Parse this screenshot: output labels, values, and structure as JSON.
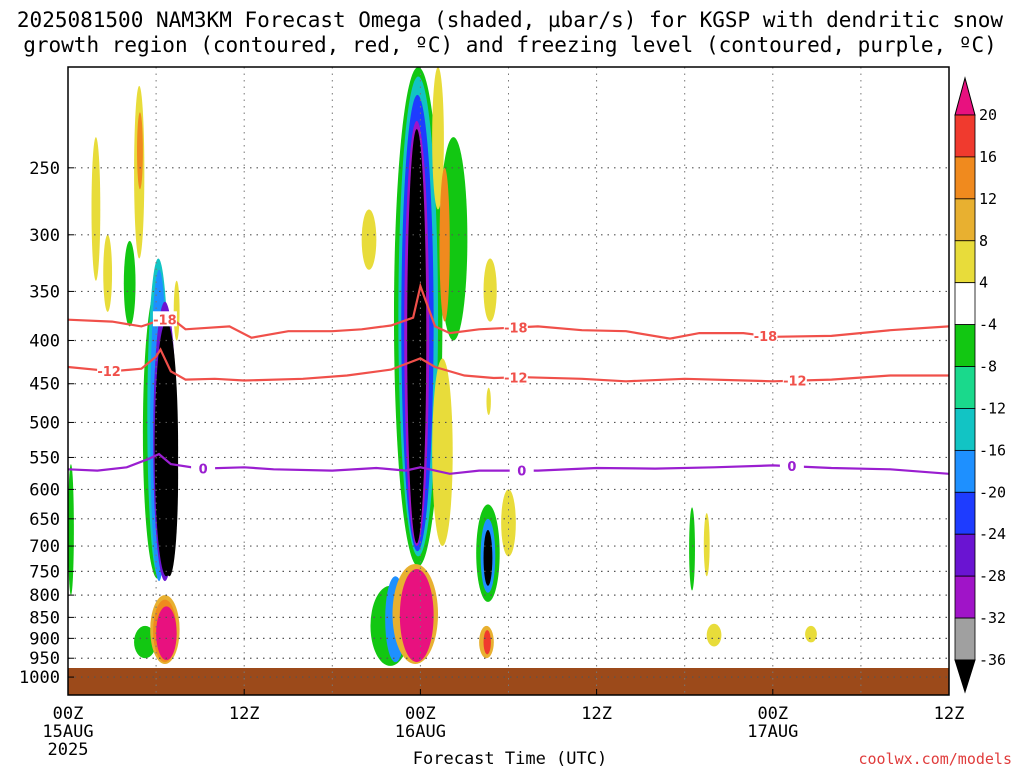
{
  "chart_data": {
    "type": "heatmap",
    "title": "2025081500 NAM3KM Forecast Omega (shaded, µbar/s) for KGSP with dendritic snow",
    "subtitle": "growth region (contoured, red, ºC) and freezing level (contoured, purple, ºC)",
    "xlabel": "Forecast Time (UTC)",
    "credit": "coolwx.com/models",
    "x_ticks": [
      {
        "hour": 0,
        "label": "00Z",
        "sub": "15AUG",
        "sub2": "2025"
      },
      {
        "hour": 12,
        "label": "12Z",
        "sub": "",
        "sub2": ""
      },
      {
        "hour": 24,
        "label": "00Z",
        "sub": "16AUG",
        "sub2": ""
      },
      {
        "hour": 36,
        "label": "12Z",
        "sub": "",
        "sub2": ""
      },
      {
        "hour": 48,
        "label": "00Z",
        "sub": "17AUG",
        "sub2": ""
      },
      {
        "hour": 60,
        "label": "12Z",
        "sub": "",
        "sub2": ""
      }
    ],
    "xlim": [
      0,
      60
    ],
    "y_axis": {
      "scale": "log-pressure",
      "ylim": [
        1050,
        190
      ],
      "tick_labels": [
        "250",
        "300",
        "350",
        "400",
        "450",
        "500",
        "550",
        "600",
        "650",
        "700",
        "750",
        "800",
        "850",
        "900",
        "950",
        "1000"
      ]
    },
    "colorbar": {
      "labels": [
        "20",
        "16",
        "12",
        "8",
        "4",
        "-4",
        "-8",
        "-12",
        "-16",
        "-20",
        "-24",
        "-28",
        "-32",
        "-36"
      ],
      "colors": [
        "#e8117f",
        "#f03a2e",
        "#f08a1e",
        "#e8b030",
        "#e8dc3a",
        "#ffffff",
        "#12c712",
        "#1ad98c",
        "#12c4c4",
        "#1e90ff",
        "#1e3cff",
        "#6a14d2",
        "#a014c8",
        "#a0a0a0",
        "#000000"
      ]
    },
    "contours": {
      "dgz_minus18": {
        "value": -18,
        "color": "#f0504a",
        "labels": [
          "-18",
          "-18",
          "-18"
        ],
        "points": [
          [
            0,
            378
          ],
          [
            3,
            380
          ],
          [
            5,
            385
          ],
          [
            6,
            380
          ],
          [
            7,
            376
          ],
          [
            8,
            388
          ],
          [
            11,
            385
          ],
          [
            12.5,
            397
          ],
          [
            15,
            390
          ],
          [
            18,
            390
          ],
          [
            20,
            388
          ],
          [
            22,
            384
          ],
          [
            23.5,
            376
          ],
          [
            24,
            345
          ],
          [
            25,
            385
          ],
          [
            26,
            392
          ],
          [
            28,
            388
          ],
          [
            32,
            385
          ],
          [
            35,
            389
          ],
          [
            38,
            390
          ],
          [
            41,
            398
          ],
          [
            43,
            392
          ],
          [
            46,
            392
          ],
          [
            48,
            396
          ],
          [
            52,
            395
          ],
          [
            56,
            389
          ],
          [
            60,
            385
          ]
        ]
      },
      "dgz_minus12": {
        "value": -12,
        "color": "#f0504a",
        "labels": [
          "-12",
          "-12",
          "-12"
        ],
        "points": [
          [
            0,
            430
          ],
          [
            3,
            435
          ],
          [
            5,
            432
          ],
          [
            6,
            418
          ],
          [
            6.3,
            410
          ],
          [
            7,
            435
          ],
          [
            8,
            445
          ],
          [
            10,
            444
          ],
          [
            12,
            446
          ],
          [
            16,
            444
          ],
          [
            19,
            440
          ],
          [
            22,
            433
          ],
          [
            24,
            420
          ],
          [
            25,
            430
          ],
          [
            27,
            440
          ],
          [
            29,
            443
          ],
          [
            31,
            442
          ],
          [
            35,
            444
          ],
          [
            38,
            447
          ],
          [
            42,
            444
          ],
          [
            48,
            447
          ],
          [
            52,
            445
          ],
          [
            56,
            440
          ],
          [
            60,
            440
          ]
        ]
      },
      "freezing_level": {
        "value": 0,
        "color": "#9a1ed0",
        "labels": [
          "0",
          "0",
          "0"
        ],
        "points": [
          [
            0,
            568
          ],
          [
            2,
            570
          ],
          [
            4,
            565
          ],
          [
            5.5,
            552
          ],
          [
            6.2,
            545
          ],
          [
            7,
            560
          ],
          [
            9,
            567
          ],
          [
            12,
            565
          ],
          [
            14,
            568
          ],
          [
            18,
            570
          ],
          [
            21,
            566
          ],
          [
            23,
            570
          ],
          [
            24,
            565
          ],
          [
            25,
            570
          ],
          [
            26,
            575
          ],
          [
            28,
            570
          ],
          [
            32,
            570
          ],
          [
            36,
            566
          ],
          [
            40,
            567
          ],
          [
            44,
            565
          ],
          [
            48,
            562
          ],
          [
            52,
            566
          ],
          [
            56,
            568
          ],
          [
            60,
            575
          ]
        ]
      }
    },
    "omega_features": [
      {
        "t": [
          5.1,
          7.1
        ],
        "p": [
          345,
          765
        ],
        "color": "#12c712"
      },
      {
        "t": [
          5.4,
          6.9
        ],
        "p": [
          320,
          760
        ],
        "color": "#12c4c4"
      },
      {
        "t": [
          5.6,
          6.8
        ],
        "p": [
          330,
          770
        ],
        "color": "#1e90ff"
      },
      {
        "t": [
          5.8,
          7.4
        ],
        "p": [
          360,
          770
        ],
        "color": "#6a14d2"
      },
      {
        "t": [
          5.9,
          7.5
        ],
        "p": [
          380,
          760
        ],
        "color": "#000000"
      },
      {
        "t": [
          6.3,
          7.5
        ],
        "p": [
          440,
          760
        ],
        "color": "#000000"
      },
      {
        "t": [
          4.5,
          6.0
        ],
        "p": [
          870,
          950
        ],
        "color": "#12c712"
      },
      {
        "t": [
          5.6,
          7.6
        ],
        "p": [
          800,
          965
        ],
        "color": "#e8b030"
      },
      {
        "t": [
          5.8,
          7.4
        ],
        "p": [
          810,
          960
        ],
        "color": "#f08a1e"
      },
      {
        "t": [
          6.0,
          7.4
        ],
        "p": [
          825,
          955
        ],
        "color": "#e8117f"
      },
      {
        "t": [
          4.5,
          5.2
        ],
        "p": [
          200,
          320
        ],
        "color": "#e8dc3a"
      },
      {
        "t": [
          4.7,
          5.1
        ],
        "p": [
          215,
          265
        ],
        "color": "#f08a1e"
      },
      {
        "t": [
          1.6,
          2.2
        ],
        "p": [
          230,
          340
        ],
        "color": "#e8dc3a"
      },
      {
        "t": [
          2.4,
          3.0
        ],
        "p": [
          300,
          370
        ],
        "color": "#e8dc3a"
      },
      {
        "t": [
          3.8,
          4.6
        ],
        "p": [
          305,
          385
        ],
        "color": "#12c712"
      },
      {
        "t": [
          0.0,
          0.4
        ],
        "p": [
          560,
          800
        ],
        "color": "#12c712"
      },
      {
        "t": [
          7.2,
          7.6
        ],
        "p": [
          340,
          400
        ],
        "color": "#e8dc3a"
      },
      {
        "t": [
          22.2,
          25.5
        ],
        "p": [
          190,
          740
        ],
        "color": "#12c712"
      },
      {
        "t": [
          22.5,
          25.2
        ],
        "p": [
          195,
          720
        ],
        "color": "#12c4c4"
      },
      {
        "t": [
          22.7,
          24.9
        ],
        "p": [
          205,
          710
        ],
        "color": "#1e3cff"
      },
      {
        "t": [
          22.9,
          24.6
        ],
        "p": [
          220,
          700
        ],
        "color": "#a014c8"
      },
      {
        "t": [
          23.1,
          24.4
        ],
        "p": [
          225,
          695
        ],
        "color": "#000000"
      },
      {
        "t": [
          25.3,
          27.2
        ],
        "p": [
          230,
          400
        ],
        "color": "#12c712"
      },
      {
        "t": [
          24.8,
          25.6
        ],
        "p": [
          190,
          280
        ],
        "color": "#e8dc3a"
      },
      {
        "t": [
          25.3,
          26.0
        ],
        "p": [
          250,
          380
        ],
        "color": "#f08a1e"
      },
      {
        "t": [
          24.8,
          26.2
        ],
        "p": [
          420,
          700
        ],
        "color": "#e8dc3a"
      },
      {
        "t": [
          20.0,
          21.0
        ],
        "p": [
          280,
          330
        ],
        "color": "#e8dc3a"
      },
      {
        "t": [
          20.6,
          23.3
        ],
        "p": [
          780,
          970
        ],
        "color": "#12c712"
      },
      {
        "t": [
          21.6,
          23.0
        ],
        "p": [
          760,
          960
        ],
        "color": "#1e90ff"
      },
      {
        "t": [
          22.1,
          25.2
        ],
        "p": [
          735,
          965
        ],
        "color": "#e8b030"
      },
      {
        "t": [
          22.6,
          24.9
        ],
        "p": [
          745,
          960
        ],
        "color": "#e8117f"
      },
      {
        "t": [
          28.3,
          29.2
        ],
        "p": [
          320,
          380
        ],
        "color": "#e8dc3a"
      },
      {
        "t": [
          28.5,
          28.8
        ],
        "p": [
          455,
          490
        ],
        "color": "#e8dc3a"
      },
      {
        "t": [
          27.8,
          29.4
        ],
        "p": [
          625,
          815
        ],
        "color": "#12c712"
      },
      {
        "t": [
          28.1,
          29.1
        ],
        "p": [
          650,
          795
        ],
        "color": "#1e90ff"
      },
      {
        "t": [
          28.3,
          28.9
        ],
        "p": [
          670,
          780
        ],
        "color": "#000000"
      },
      {
        "t": [
          28.0,
          29.0
        ],
        "p": [
          870,
          950
        ],
        "color": "#e8b030"
      },
      {
        "t": [
          28.3,
          28.8
        ],
        "p": [
          880,
          940
        ],
        "color": "#f03a2e"
      },
      {
        "t": [
          29.5,
          30.5
        ],
        "p": [
          600,
          720
        ],
        "color": "#e8dc3a"
      },
      {
        "t": [
          42.3,
          42.7
        ],
        "p": [
          630,
          790
        ],
        "color": "#12c712"
      },
      {
        "t": [
          43.3,
          43.7
        ],
        "p": [
          640,
          760
        ],
        "color": "#e8dc3a"
      },
      {
        "t": [
          43.5,
          44.5
        ],
        "p": [
          865,
          920
        ],
        "color": "#e8dc3a"
      },
      {
        "t": [
          50.2,
          51.0
        ],
        "p": [
          870,
          910
        ],
        "color": "#e8dc3a"
      }
    ]
  }
}
